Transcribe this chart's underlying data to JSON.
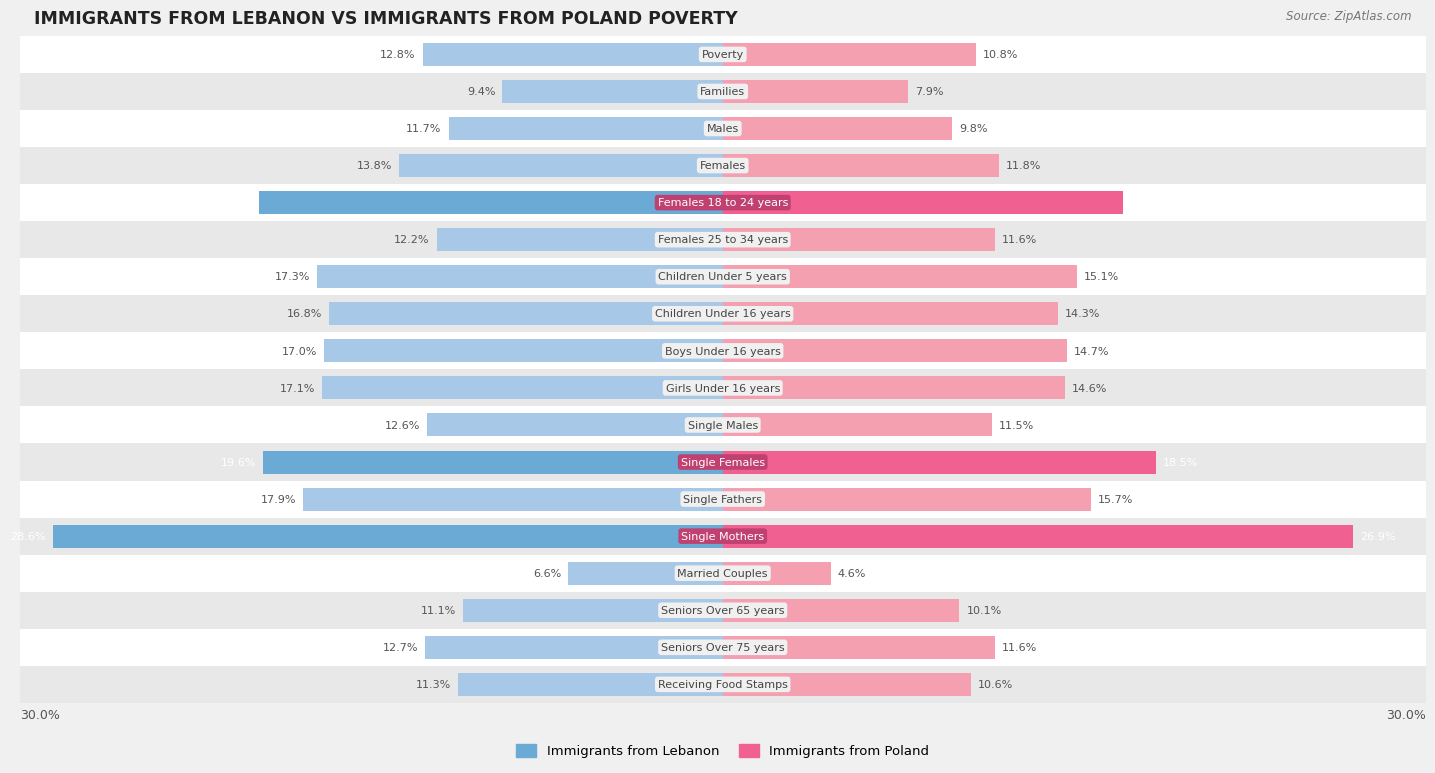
{
  "title": "IMMIGRANTS FROM LEBANON VS IMMIGRANTS FROM POLAND POVERTY",
  "source": "Source: ZipAtlas.com",
  "categories": [
    "Poverty",
    "Families",
    "Males",
    "Females",
    "Females 18 to 24 years",
    "Females 25 to 34 years",
    "Children Under 5 years",
    "Children Under 16 years",
    "Boys Under 16 years",
    "Girls Under 16 years",
    "Single Males",
    "Single Females",
    "Single Fathers",
    "Single Mothers",
    "Married Couples",
    "Seniors Over 65 years",
    "Seniors Over 75 years",
    "Receiving Food Stamps"
  ],
  "lebanon_values": [
    12.8,
    9.4,
    11.7,
    13.8,
    19.8,
    12.2,
    17.3,
    16.8,
    17.0,
    17.1,
    12.6,
    19.6,
    17.9,
    28.6,
    6.6,
    11.1,
    12.7,
    11.3
  ],
  "poland_values": [
    10.8,
    7.9,
    9.8,
    11.8,
    17.1,
    11.6,
    15.1,
    14.3,
    14.7,
    14.6,
    11.5,
    18.5,
    15.7,
    26.9,
    4.6,
    10.1,
    11.6,
    10.6
  ],
  "lebanon_color_normal": "#a8c8e8",
  "poland_color_normal": "#f4a0b0",
  "lebanon_color_highlight": "#6aaad4",
  "poland_color_highlight": "#f06090",
  "highlight_rows": [
    4,
    11,
    13
  ],
  "max_value": 30.0,
  "background_color": "#f0f0f0",
  "row_bg_even": "#ffffff",
  "row_bg_odd": "#e8e8e8",
  "legend_lebanon": "Immigrants from Lebanon",
  "legend_poland": "Immigrants from Poland",
  "label_bg_normal": "#f0f0f0",
  "label_bg_highlight": "#e87090"
}
